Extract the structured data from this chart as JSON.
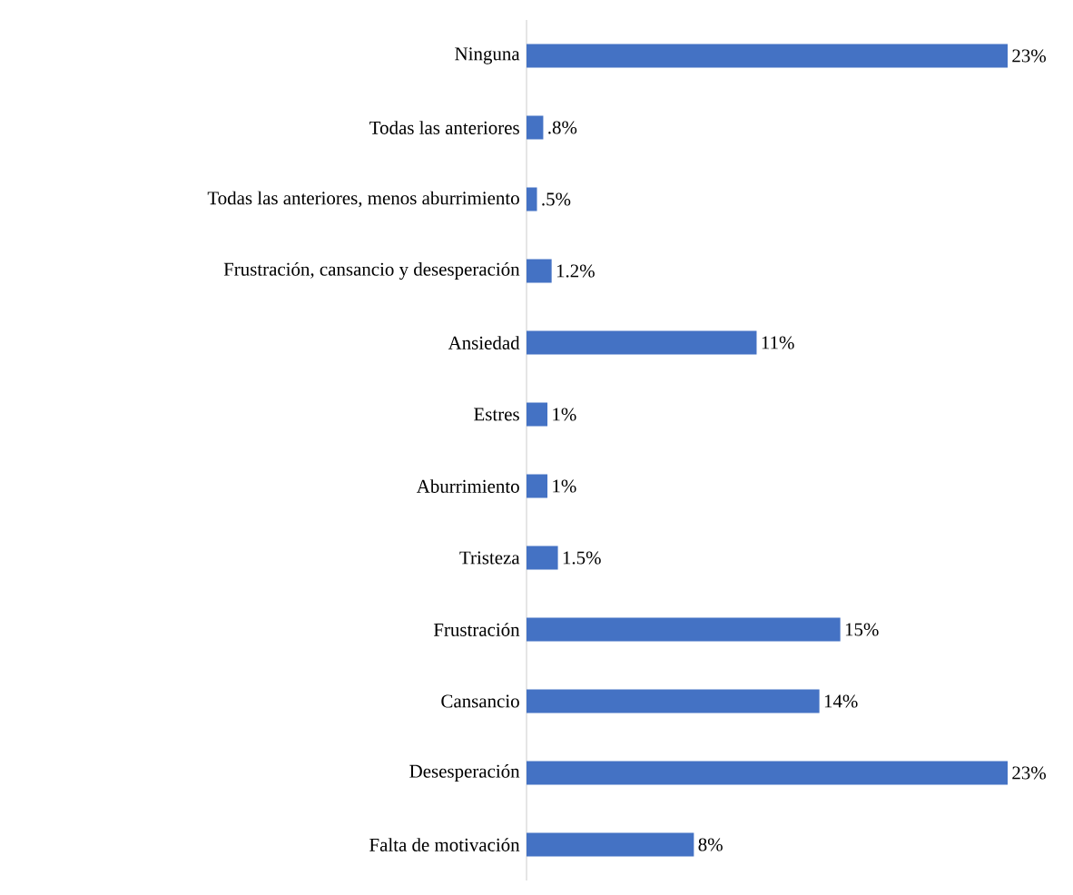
{
  "chart_data": {
    "type": "bar",
    "orientation": "horizontal",
    "color": "#4472c4",
    "categories": [
      "Ninguna",
      "Todas las anteriores",
      "Todas las anteriores, menos aburrimiento",
      "Frustración, cansancio y desesperación",
      "Ansiedad",
      "Estres",
      "Aburrimiento",
      "Tristeza",
      "Frustración",
      "Cansancio",
      "Desesperación",
      "Falta de motivación"
    ],
    "values": [
      23,
      0.8,
      0.5,
      1.2,
      11,
      1,
      1,
      1.5,
      15,
      14,
      23,
      8
    ],
    "value_labels": [
      "23%",
      ".8%",
      ".5%",
      "1.2%",
      "11%",
      "1%",
      "1%",
      "1.5%",
      "15%",
      "14%",
      "23%",
      "8%"
    ]
  }
}
